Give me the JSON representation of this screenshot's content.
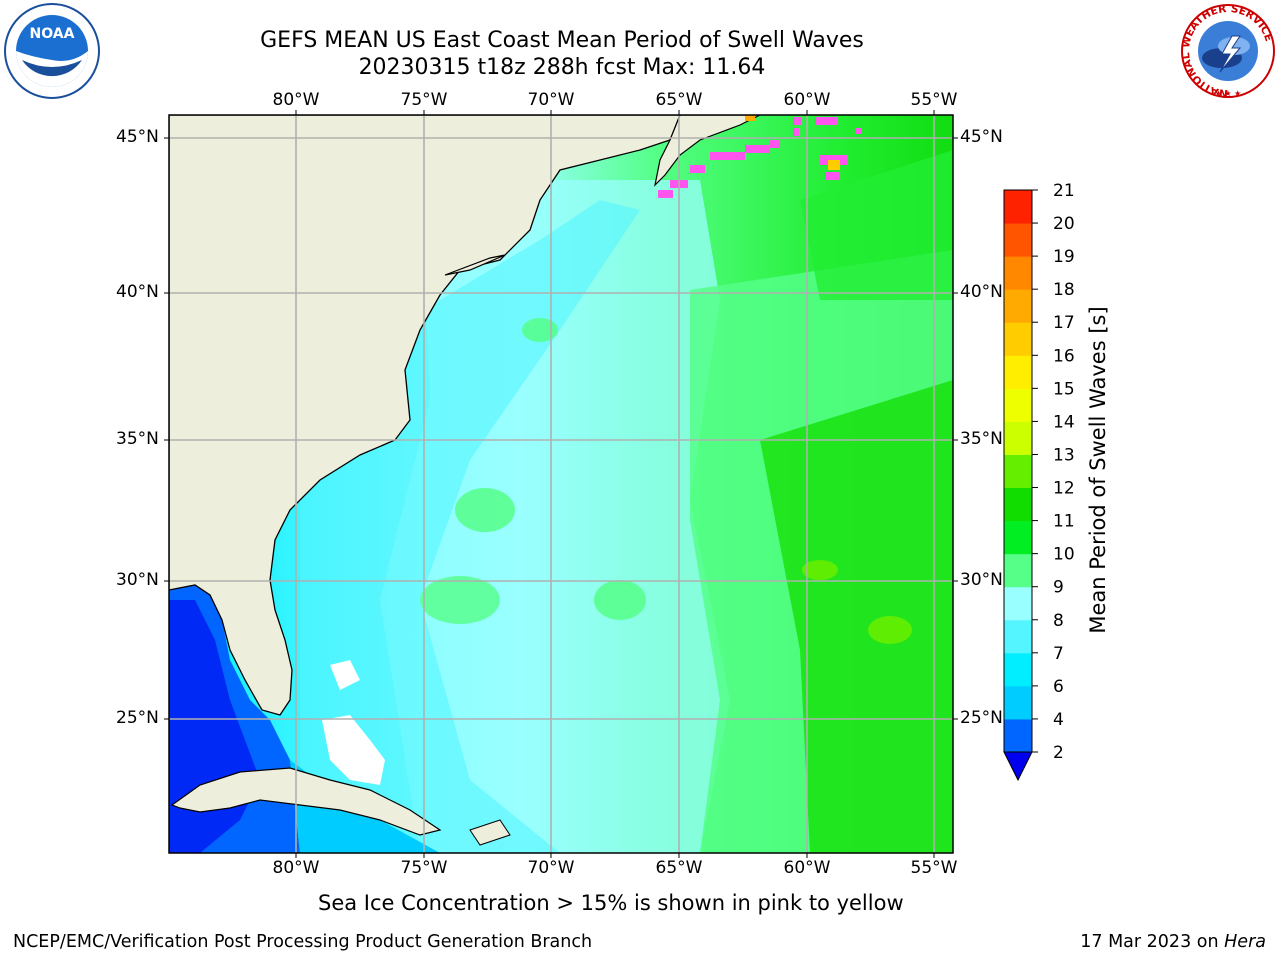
{
  "header": {
    "title_line1": "GEFS MEAN US East Coast Mean Period of Swell Waves",
    "title_line2": "20230315 t18z 288h fcst   Max: 11.64"
  },
  "map": {
    "lon_labels": [
      "80°W",
      "75°W",
      "70°W",
      "65°W",
      "60°W",
      "55°W"
    ],
    "lat_labels": [
      "45°N",
      "40°N",
      "35°N",
      "30°N",
      "25°N"
    ],
    "land_color": "#eeeedd",
    "grid_color": "#b0b0b0"
  },
  "colorbar": {
    "label": "Mean Period of Swell Waves [s]",
    "ticks": [
      "2",
      "4",
      "6",
      "7",
      "8",
      "9",
      "10",
      "11",
      "12",
      "13",
      "14",
      "15",
      "16",
      "17",
      "18",
      "19",
      "20",
      "21"
    ],
    "colors": [
      "#0066ff",
      "#00ccff",
      "#00eeff",
      "#55f5ff",
      "#99ffff",
      "#55ff88",
      "#00ee22",
      "#11dd00",
      "#66ee00",
      "#ccff00",
      "#eeff00",
      "#ffee00",
      "#ffcc00",
      "#ffaa00",
      "#ff8800",
      "#ff5500",
      "#ff2200"
    ],
    "extend_color": "#0000ee"
  },
  "footer": {
    "note": "Sea Ice Concentration > 15% is shown in pink to yellow",
    "credit": "NCEP/EMC/Verification Post Processing Product Generation Branch",
    "date": "17 Mar 2023 on",
    "host": "Hera"
  },
  "logos": {
    "noaa": "NOAA",
    "nws_ring": "NATIONAL WEATHER SERVICE"
  }
}
